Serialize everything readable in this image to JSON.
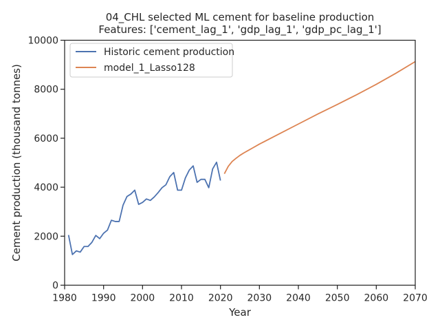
{
  "chart_data": {
    "type": "line",
    "title_line1": "04_CHL selected ML cement for baseline production",
    "title_line2": "Features: ['cement_lag_1', 'gdp_lag_1', 'gdp_pc_lag_1']",
    "xlabel": "Year",
    "ylabel": "Cement production (thousand tonnes)",
    "xlim": [
      1980,
      2070
    ],
    "ylim": [
      0,
      10000
    ],
    "x_ticks": [
      1980,
      1990,
      2000,
      2010,
      2020,
      2030,
      2040,
      2050,
      2060,
      2070
    ],
    "y_ticks": [
      0,
      2000,
      4000,
      6000,
      8000,
      10000
    ],
    "grid": false,
    "legend_position": "top-left",
    "series": [
      {
        "name": "Historic cement production",
        "color": "#4c72b0",
        "x": [
          1981,
          1982,
          1983,
          1984,
          1985,
          1986,
          1987,
          1988,
          1989,
          1990,
          1991,
          1992,
          1993,
          1994,
          1995,
          1996,
          1997,
          1998,
          1999,
          2000,
          2001,
          2002,
          2003,
          2004,
          2005,
          2006,
          2007,
          2008,
          2009,
          2010,
          2011,
          2012,
          2013,
          2014,
          2015,
          2016,
          2017,
          2018,
          2019,
          2020
        ],
        "y": [
          2050,
          1250,
          1400,
          1350,
          1580,
          1580,
          1750,
          2030,
          1900,
          2120,
          2250,
          2650,
          2600,
          2600,
          3270,
          3620,
          3720,
          3880,
          3300,
          3380,
          3520,
          3460,
          3600,
          3780,
          3980,
          4100,
          4430,
          4600,
          3880,
          3880,
          4380,
          4700,
          4870,
          4200,
          4320,
          4320,
          3980,
          4750,
          5020,
          4270
        ]
      },
      {
        "name": "model_1_Lasso128",
        "color": "#dd8452",
        "x": [
          2021,
          2022,
          2023,
          2024,
          2025,
          2026,
          2027,
          2028,
          2030,
          2035,
          2040,
          2045,
          2050,
          2055,
          2060,
          2065,
          2070
        ],
        "y": [
          4550,
          4850,
          5050,
          5180,
          5300,
          5400,
          5490,
          5580,
          5760,
          6170,
          6580,
          6990,
          7380,
          7780,
          8200,
          8650,
          9130
        ]
      }
    ]
  }
}
